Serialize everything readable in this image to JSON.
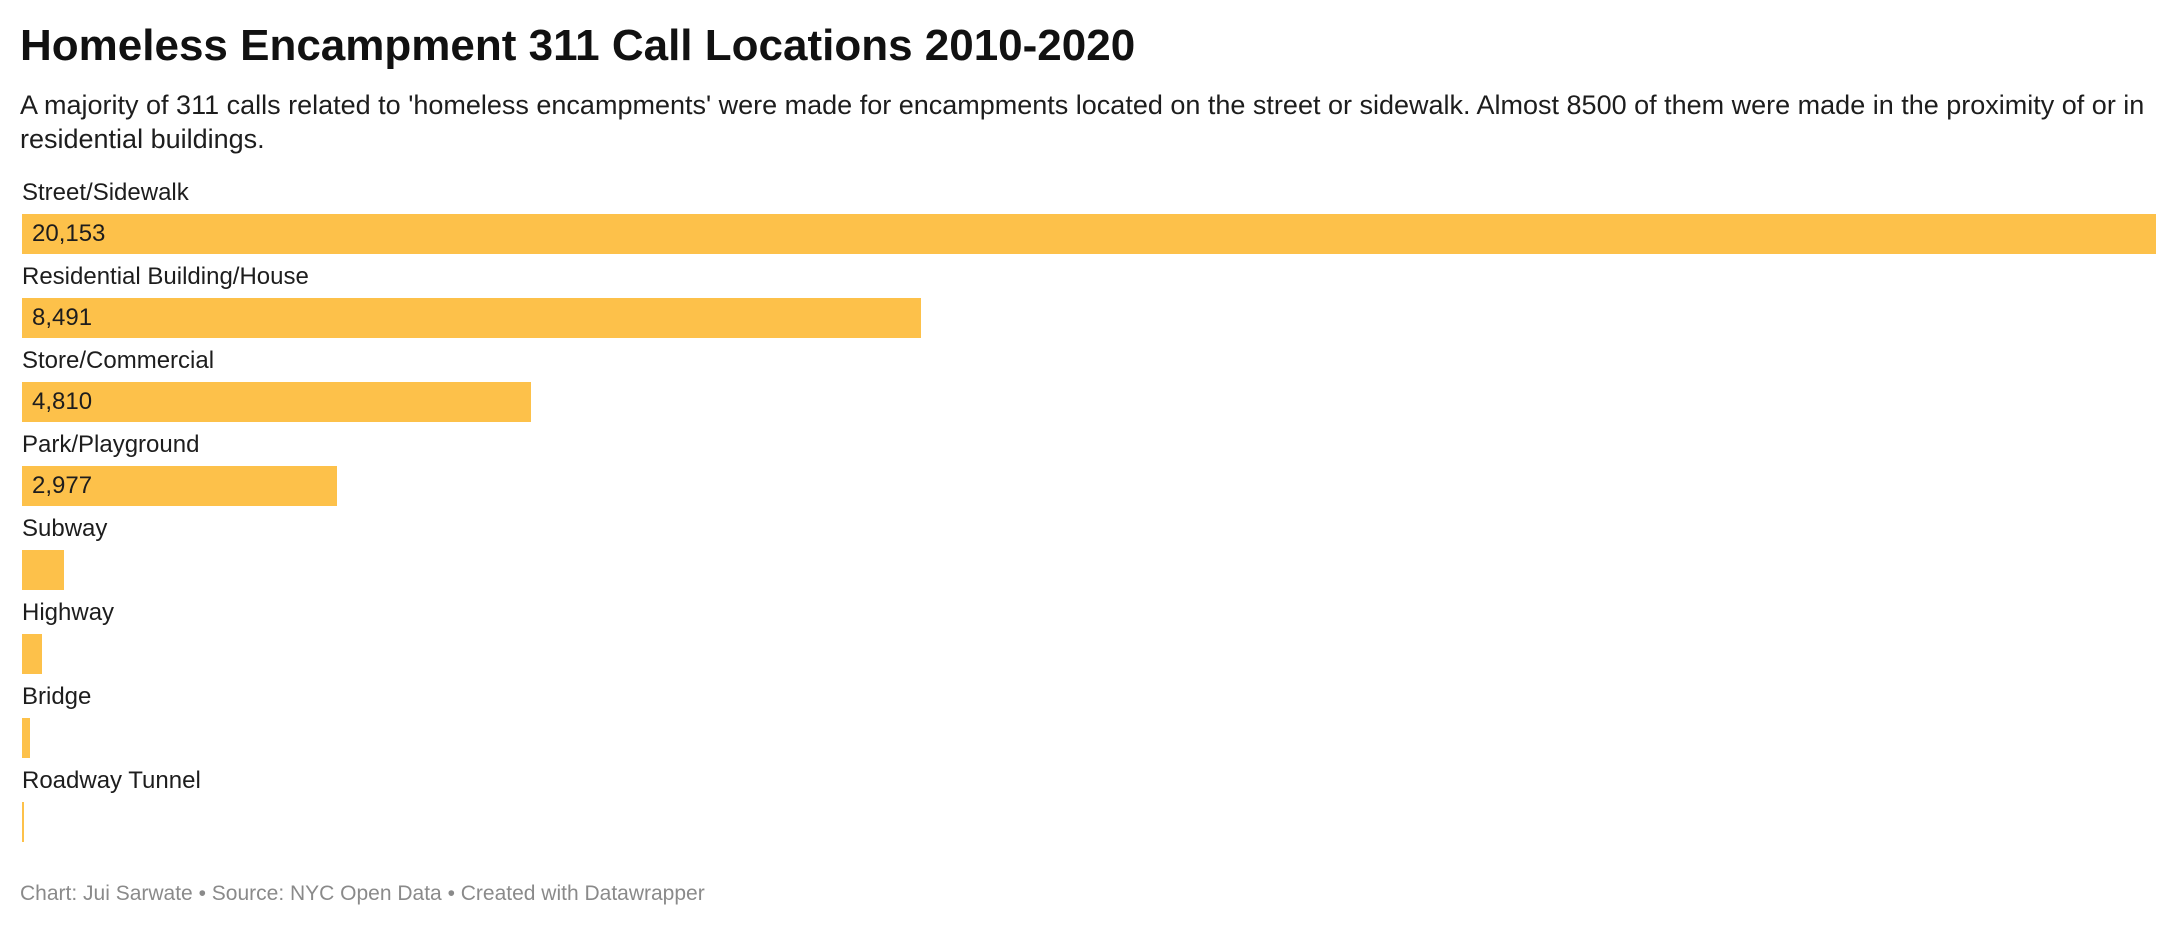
{
  "title": "Homeless Encampment 311 Call Locations 2010-2020",
  "subtitle": "A majority of 311 calls related to 'homeless encampments' were made for encampments located on the street or sidewalk. Almost 8500 of them were made in the proximity of or in residential buildings.",
  "footer": {
    "chart_credit": "Chart: Jui Sarwate",
    "source": "Source: NYC Open Data",
    "tool": "Created with Datawrapper",
    "separator": " • "
  },
  "colors": {
    "bar": "#fdc14a",
    "text": "#1d1d1d",
    "footer": "#8a8a8a"
  },
  "chart_data": {
    "type": "bar",
    "orientation": "horizontal",
    "categories": [
      "Street/Sidewalk",
      "Residential Building/House",
      "Store/Commercial",
      "Park/Playground",
      "Subway",
      "Highway",
      "Bridge",
      "Roadway Tunnel"
    ],
    "values": [
      20153,
      8491,
      4810,
      2977,
      400,
      190,
      80,
      20
    ],
    "value_labels": [
      "20,153",
      "8,491",
      "4,810",
      "2,977",
      "",
      "",
      "",
      ""
    ],
    "xlim": [
      0,
      20153
    ],
    "grid": false,
    "legend": "none"
  }
}
